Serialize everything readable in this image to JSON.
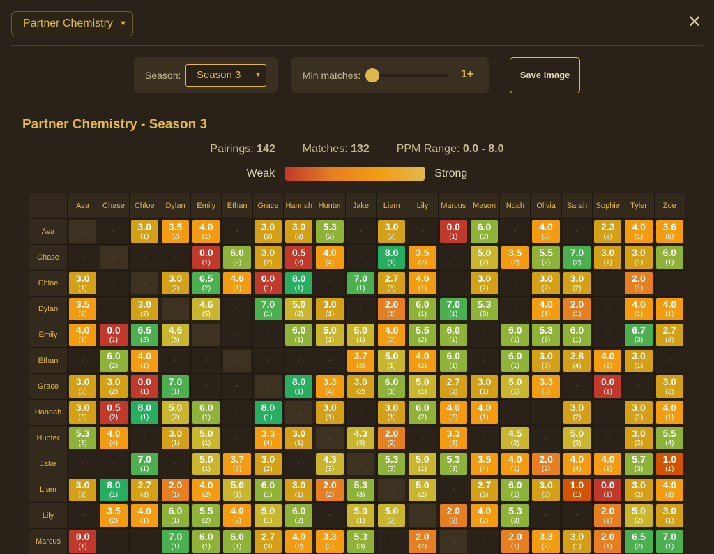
{
  "view_select": {
    "label": "Partner Chemistry"
  },
  "close_label": "✕",
  "season": {
    "label": "Season:",
    "value": "Season 3"
  },
  "min_matches": {
    "label": "Min matches:",
    "value": "1+",
    "level": 1
  },
  "save_label": "Save Image",
  "title": "Partner Chemistry - Season 3",
  "stats": {
    "pairings_label": "Pairings:",
    "pairings": "142",
    "matches_label": "Matches:",
    "matches": "132",
    "range_label": "PPM Range:",
    "range": "0.0 - 8.0"
  },
  "legend": {
    "weak": "Weak",
    "strong": "Strong"
  },
  "colors": {
    "accent": "#e0b84c",
    "scale": [
      "#c0392b",
      "#d35400",
      "#e67e22",
      "#f39c12",
      "#d4a017",
      "#c9b52e",
      "#8fb339",
      "#4caf50",
      "#27ae60"
    ]
  },
  "players": [
    "Ava",
    "Chase",
    "Chloe",
    "Dylan",
    "Emily",
    "Ethan",
    "Grace",
    "Hannah",
    "Hunter",
    "Jake",
    "Liam",
    "Lily",
    "Marcus",
    "Mason",
    "Noah",
    "Olivia",
    "Sarah",
    "Sophie",
    "Tyler",
    "Zoe"
  ],
  "matrix": [
    [
      "Ava",
      [
        "self",
        "-",
        "3.0|1",
        "3.5|2",
        "4.0|1",
        "-",
        "3.0|3",
        "3.0|3",
        "5.3|3",
        "-",
        "3.0|3",
        "-",
        "0.0|1",
        "6.0|2",
        "-",
        "4.0|2",
        "-",
        "2.3|3",
        "4.0|1",
        "3.6|5"
      ]
    ],
    [
      "Chase",
      [
        "-",
        "self",
        "-",
        "-",
        "0.0|1",
        "6.0|2",
        "3.0|2",
        "0.5|2",
        "4.0|4",
        "-",
        "8.0|1",
        "3.5|2",
        "-",
        "5.0|2",
        "3.5|2",
        "5.5|2",
        "7.0|2",
        "3.0|1",
        "3.0|1",
        "6.0|1"
      ]
    ],
    [
      "Chloe",
      [
        "3.0|1",
        "-",
        "self",
        "3.0|2",
        "6.5|2",
        "4.0|1",
        "0.0|1",
        "8.0|1",
        "-",
        "7.0|1",
        "2.7|3",
        "4.0|1",
        "-",
        "3.0|2",
        "-",
        "3.0|2",
        "3.0|2",
        "-",
        "2.0|1",
        "-"
      ]
    ],
    [
      "Dylan",
      [
        "3.5|2",
        "-",
        "3.0|2",
        "self",
        "4.6|5",
        "-",
        "7.0|1",
        "5.0|2",
        "3.0|1",
        "-",
        "2.0|1",
        "6.0|1",
        "7.0|1",
        "5.3|3",
        "-",
        "4.0|1",
        "2.0|1",
        "-",
        "4.0|1",
        "4.0|1"
      ]
    ],
    [
      "Emily",
      [
        "4.0|1",
        "0.0|1",
        "6.5|2",
        "4.6|5",
        "self",
        "-",
        "-",
        "6.0|1",
        "5.0|1",
        "5.0|1",
        "4.0|2",
        "5.5|2",
        "6.0|1",
        "-",
        "6.0|1",
        "5.3|3",
        "6.0|1",
        "-",
        "6.7|3",
        "2.7|3"
      ]
    ],
    [
      "Ethan",
      [
        "-",
        "6.0|2",
        "4.0|1",
        "-",
        "-",
        "self",
        "-",
        "-",
        "-",
        "3.7|3",
        "5.0|1",
        "4.0|3",
        "6.0|1",
        "-",
        "6.0|1",
        "3.0|3",
        "2.8|4",
        "4.0|1",
        "3.0|1",
        "-"
      ]
    ],
    [
      "Grace",
      [
        "3.0|3",
        "3.0|2",
        "0.0|1",
        "7.0|1",
        "-",
        "-",
        "self",
        "8.0|1",
        "3.3|4",
        "3.0|2",
        "6.0|1",
        "5.0|1",
        "2.7|3",
        "3.0|1",
        "5.0|1",
        "3.3|3",
        "-",
        "0.0|1",
        "-",
        "3.0|2"
      ]
    ],
    [
      "Hannah",
      [
        "3.0|3",
        "0.5|2",
        "8.0|1",
        "5.0|2",
        "6.0|1",
        "-",
        "8.0|1",
        "self",
        "3.0|1",
        "-",
        "3.0|1",
        "6.0|2",
        "4.0|2",
        "4.0|1",
        "-",
        "-",
        "3.0|2",
        "-",
        "3.0|1",
        "4.0|1"
      ]
    ],
    [
      "Hunter",
      [
        "5.3|3",
        "4.0|4",
        "-",
        "3.0|1",
        "5.0|1",
        "-",
        "3.3|4",
        "3.0|1",
        "self",
        "4.3|3",
        "2.0|2",
        "-",
        "3.3|3",
        "-",
        "4.5|2",
        "-",
        "5.0|3",
        "-",
        "3.0|2",
        "5.5|4"
      ]
    ],
    [
      "Jake",
      [
        "-",
        "-",
        "7.0|1",
        "-",
        "5.0|1",
        "3.7|3",
        "3.0|2",
        "-",
        "4.3|3",
        "self",
        "5.3|3",
        "5.0|1",
        "5.3|3",
        "3.5|4",
        "4.0|1",
        "2.0|2",
        "4.0|4",
        "4.0|1",
        "5.7|3",
        "1.0|1"
      ]
    ],
    [
      "Liam",
      [
        "3.0|3",
        "8.0|1",
        "2.7|3",
        "2.0|1",
        "4.0|2",
        "5.0|1",
        "6.0|1",
        "3.0|1",
        "2.0|2",
        "5.3|3",
        "self",
        "5.0|2",
        "-",
        "2.7|3",
        "6.0|1",
        "3.0|2",
        "1.0|1",
        "0.0|1",
        "3.0|2",
        "4.0|3"
      ]
    ],
    [
      "Lily",
      [
        "-",
        "3.5|2",
        "4.0|1",
        "6.0|1",
        "5.5|2",
        "4.0|3",
        "5.0|1",
        "6.0|2",
        "-",
        "5.0|1",
        "5.0|2",
        "self",
        "2.0|2",
        "4.0|2",
        "5.3|3",
        "-",
        "-",
        "2.0|1",
        "5.0|2",
        "3.0|1"
      ]
    ],
    [
      "Marcus",
      [
        "0.0|1",
        "-",
        "-",
        "7.0|1",
        "6.0|1",
        "6.0|1",
        "2.7|3",
        "4.0|2",
        "3.3|3",
        "5.3|3",
        "-",
        "2.0|2",
        "self",
        "-",
        "2.0|1",
        "3.3|2",
        "3.0|1",
        "2.0|1",
        "6.5|2",
        "7.0|1"
      ]
    ]
  ]
}
